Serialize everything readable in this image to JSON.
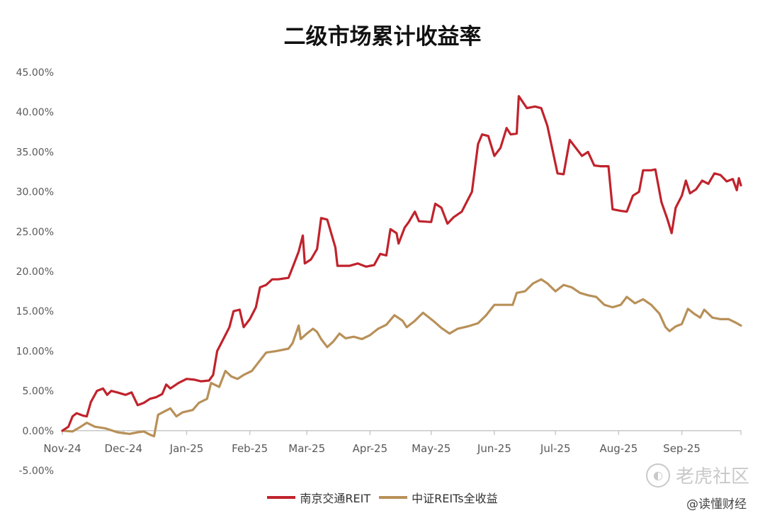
{
  "title": "二级市场累计收益率",
  "legend": {
    "series1": "南京交通REIT",
    "series2": "中证REITs全收益"
  },
  "watermark": {
    "brand": "老虎社区",
    "handle": "@读懂财经"
  },
  "colors": {
    "series1": "#c0232c",
    "series2": "#b89058",
    "axis": "#c8c8c8",
    "tick_text": "#595959"
  },
  "chart_data": {
    "type": "line",
    "x_tick_labels": [
      "Nov-24",
      "Dec-24",
      "Jan-25",
      "Feb-25",
      "Mar-25",
      "Apr-25",
      "May-25",
      "Jun-25",
      "Jul-25",
      "Aug-25",
      "Sep-25"
    ],
    "y_tick_labels": [
      "45.00%",
      "40.00%",
      "35.00%",
      "30.00%",
      "25.00%",
      "20.00%",
      "15.00%",
      "10.00%",
      "5.00%",
      "0.00%",
      "-5.00%"
    ],
    "ylim": [
      -5,
      45
    ],
    "y_unit": "%",
    "x_range": [
      "2024-11-01",
      "2025-09-30"
    ],
    "grid": false,
    "legend_position": "bottom",
    "series": [
      {
        "name": "南京交通REIT",
        "points": [
          [
            "2024-11-01",
            0.0
          ],
          [
            "2024-11-04",
            0.5
          ],
          [
            "2024-11-06",
            1.8
          ],
          [
            "2024-11-08",
            2.2
          ],
          [
            "2024-11-11",
            1.9
          ],
          [
            "2024-11-13",
            1.8
          ],
          [
            "2024-11-15",
            3.6
          ],
          [
            "2024-11-18",
            5.0
          ],
          [
            "2024-11-21",
            5.3
          ],
          [
            "2024-11-23",
            4.5
          ],
          [
            "2024-11-25",
            5.0
          ],
          [
            "2024-11-28",
            4.8
          ],
          [
            "2024-12-02",
            4.5
          ],
          [
            "2024-12-05",
            4.8
          ],
          [
            "2024-12-08",
            3.2
          ],
          [
            "2024-12-11",
            3.5
          ],
          [
            "2024-12-14",
            4.0
          ],
          [
            "2024-12-17",
            4.2
          ],
          [
            "2024-12-20",
            4.6
          ],
          [
            "2024-12-22",
            5.8
          ],
          [
            "2024-12-24",
            5.3
          ],
          [
            "2024-12-28",
            6.0
          ],
          [
            "2025-01-01",
            6.5
          ],
          [
            "2025-01-05",
            6.4
          ],
          [
            "2025-01-08",
            6.2
          ],
          [
            "2025-01-12",
            6.3
          ],
          [
            "2025-01-14",
            7.0
          ],
          [
            "2025-01-16",
            10.0
          ],
          [
            "2025-01-19",
            11.5
          ],
          [
            "2025-01-22",
            13.0
          ],
          [
            "2025-01-24",
            15.0
          ],
          [
            "2025-01-27",
            15.2
          ],
          [
            "2025-01-29",
            13.0
          ],
          [
            "2025-02-01",
            14.0
          ],
          [
            "2025-02-04",
            15.5
          ],
          [
            "2025-02-06",
            18.0
          ],
          [
            "2025-02-09",
            18.3
          ],
          [
            "2025-02-12",
            19.0
          ],
          [
            "2025-02-15",
            19.0
          ],
          [
            "2025-02-20",
            19.2
          ],
          [
            "2025-02-22",
            20.5
          ],
          [
            "2025-02-25",
            22.5
          ],
          [
            "2025-02-27",
            24.5
          ],
          [
            "2025-02-28",
            21.0
          ],
          [
            "2025-03-03",
            21.5
          ],
          [
            "2025-03-06",
            22.8
          ],
          [
            "2025-03-08",
            26.7
          ],
          [
            "2025-03-11",
            26.5
          ],
          [
            "2025-03-15",
            23.0
          ],
          [
            "2025-03-16",
            20.7
          ],
          [
            "2025-03-22",
            20.7
          ],
          [
            "2025-03-26",
            21.0
          ],
          [
            "2025-03-30",
            20.6
          ],
          [
            "2025-04-03",
            20.8
          ],
          [
            "2025-04-06",
            22.2
          ],
          [
            "2025-04-09",
            22.0
          ],
          [
            "2025-04-11",
            25.3
          ],
          [
            "2025-04-14",
            24.8
          ],
          [
            "2025-04-15",
            23.5
          ],
          [
            "2025-04-18",
            25.5
          ],
          [
            "2025-04-20",
            26.2
          ],
          [
            "2025-04-23",
            27.5
          ],
          [
            "2025-04-25",
            26.3
          ],
          [
            "2025-05-01",
            26.2
          ],
          [
            "2025-05-03",
            28.5
          ],
          [
            "2025-05-06",
            28.0
          ],
          [
            "2025-05-09",
            26.0
          ],
          [
            "2025-05-12",
            26.8
          ],
          [
            "2025-05-16",
            27.5
          ],
          [
            "2025-05-18",
            28.5
          ],
          [
            "2025-05-21",
            30.0
          ],
          [
            "2025-05-24",
            36.0
          ],
          [
            "2025-05-26",
            37.2
          ],
          [
            "2025-05-29",
            37.0
          ],
          [
            "2025-06-01",
            34.5
          ],
          [
            "2025-06-04",
            35.5
          ],
          [
            "2025-06-07",
            38.0
          ],
          [
            "2025-06-09",
            37.2
          ],
          [
            "2025-06-12",
            37.3
          ],
          [
            "2025-06-13",
            42.0
          ],
          [
            "2025-06-17",
            40.5
          ],
          [
            "2025-06-21",
            40.7
          ],
          [
            "2025-06-24",
            40.5
          ],
          [
            "2025-06-27",
            38.3
          ],
          [
            "2025-07-02",
            32.3
          ],
          [
            "2025-07-05",
            32.2
          ],
          [
            "2025-07-08",
            36.5
          ],
          [
            "2025-07-11",
            35.5
          ],
          [
            "2025-07-14",
            34.5
          ],
          [
            "2025-07-17",
            35.0
          ],
          [
            "2025-07-20",
            33.3
          ],
          [
            "2025-07-23",
            33.2
          ],
          [
            "2025-07-27",
            33.2
          ],
          [
            "2025-07-29",
            27.8
          ],
          [
            "2025-08-02",
            27.6
          ],
          [
            "2025-08-05",
            27.5
          ],
          [
            "2025-08-08",
            29.5
          ],
          [
            "2025-08-11",
            30.0
          ],
          [
            "2025-08-13",
            32.7
          ],
          [
            "2025-08-17",
            32.7
          ],
          [
            "2025-08-19",
            32.8
          ],
          [
            "2025-08-22",
            28.7
          ],
          [
            "2025-08-25",
            26.5
          ],
          [
            "2025-08-27",
            24.8
          ],
          [
            "2025-08-29",
            28.0
          ],
          [
            "2025-09-01",
            29.5
          ],
          [
            "2025-09-03",
            31.4
          ],
          [
            "2025-09-05",
            29.8
          ],
          [
            "2025-09-08",
            30.3
          ],
          [
            "2025-09-11",
            31.4
          ],
          [
            "2025-09-14",
            31.0
          ],
          [
            "2025-09-17",
            32.3
          ],
          [
            "2025-09-20",
            32.1
          ],
          [
            "2025-09-23",
            31.3
          ],
          [
            "2025-09-26",
            31.6
          ],
          [
            "2025-09-28",
            30.2
          ],
          [
            "2025-09-29",
            31.7
          ],
          [
            "2025-09-30",
            30.8
          ]
        ]
      },
      {
        "name": "中证REITs全收益",
        "points": [
          [
            "2024-11-01",
            0.0
          ],
          [
            "2024-11-06",
            -0.1
          ],
          [
            "2024-11-10",
            0.5
          ],
          [
            "2024-11-13",
            1.0
          ],
          [
            "2024-11-17",
            0.5
          ],
          [
            "2024-11-22",
            0.3
          ],
          [
            "2024-11-28",
            -0.2
          ],
          [
            "2024-12-04",
            -0.4
          ],
          [
            "2024-12-08",
            -0.2
          ],
          [
            "2024-12-11",
            -0.1
          ],
          [
            "2024-12-14",
            -0.5
          ],
          [
            "2024-12-16",
            -0.7
          ],
          [
            "2024-12-18",
            2.0
          ],
          [
            "2024-12-21",
            2.4
          ],
          [
            "2024-12-24",
            2.8
          ],
          [
            "2024-12-27",
            1.8
          ],
          [
            "2024-12-30",
            2.3
          ],
          [
            "2025-01-04",
            2.6
          ],
          [
            "2025-01-07",
            3.5
          ],
          [
            "2025-01-11",
            4.0
          ],
          [
            "2025-01-13",
            6.0
          ],
          [
            "2025-01-17",
            5.5
          ],
          [
            "2025-01-20",
            7.5
          ],
          [
            "2025-01-23",
            6.8
          ],
          [
            "2025-01-26",
            6.5
          ],
          [
            "2025-01-29",
            7.0
          ],
          [
            "2025-02-02",
            7.5
          ],
          [
            "2025-02-05",
            8.5
          ],
          [
            "2025-02-09",
            9.8
          ],
          [
            "2025-02-14",
            10.0
          ],
          [
            "2025-02-20",
            10.3
          ],
          [
            "2025-02-22",
            11.0
          ],
          [
            "2025-02-25",
            13.2
          ],
          [
            "2025-02-26",
            11.5
          ],
          [
            "2025-03-01",
            12.2
          ],
          [
            "2025-03-04",
            12.8
          ],
          [
            "2025-03-06",
            12.4
          ],
          [
            "2025-03-08",
            11.5
          ],
          [
            "2025-03-11",
            10.5
          ],
          [
            "2025-03-14",
            11.2
          ],
          [
            "2025-03-17",
            12.2
          ],
          [
            "2025-03-20",
            11.6
          ],
          [
            "2025-03-24",
            11.8
          ],
          [
            "2025-03-28",
            11.5
          ],
          [
            "2025-04-01",
            12.0
          ],
          [
            "2025-04-05",
            12.8
          ],
          [
            "2025-04-09",
            13.3
          ],
          [
            "2025-04-13",
            14.5
          ],
          [
            "2025-04-17",
            13.8
          ],
          [
            "2025-04-19",
            13.0
          ],
          [
            "2025-04-23",
            13.8
          ],
          [
            "2025-04-27",
            14.8
          ],
          [
            "2025-05-02",
            13.8
          ],
          [
            "2025-05-06",
            12.9
          ],
          [
            "2025-05-10",
            12.2
          ],
          [
            "2025-05-14",
            12.8
          ],
          [
            "2025-05-19",
            13.1
          ],
          [
            "2025-05-24",
            13.5
          ],
          [
            "2025-05-28",
            14.5
          ],
          [
            "2025-06-01",
            15.8
          ],
          [
            "2025-06-06",
            15.8
          ],
          [
            "2025-06-10",
            15.8
          ],
          [
            "2025-06-12",
            17.3
          ],
          [
            "2025-06-16",
            17.5
          ],
          [
            "2025-06-20",
            18.5
          ],
          [
            "2025-06-24",
            19.0
          ],
          [
            "2025-06-27",
            18.5
          ],
          [
            "2025-07-01",
            17.5
          ],
          [
            "2025-07-05",
            18.3
          ],
          [
            "2025-07-09",
            18.0
          ],
          [
            "2025-07-13",
            17.3
          ],
          [
            "2025-07-17",
            17.0
          ],
          [
            "2025-07-21",
            16.8
          ],
          [
            "2025-07-25",
            15.8
          ],
          [
            "2025-07-29",
            15.5
          ],
          [
            "2025-08-02",
            15.8
          ],
          [
            "2025-08-05",
            16.8
          ],
          [
            "2025-08-09",
            16.0
          ],
          [
            "2025-08-13",
            16.5
          ],
          [
            "2025-08-17",
            15.8
          ],
          [
            "2025-08-21",
            14.7
          ],
          [
            "2025-08-24",
            13.0
          ],
          [
            "2025-08-26",
            12.5
          ],
          [
            "2025-08-29",
            13.1
          ],
          [
            "2025-09-01",
            13.4
          ],
          [
            "2025-09-04",
            15.3
          ],
          [
            "2025-09-07",
            14.7
          ],
          [
            "2025-09-10",
            14.2
          ],
          [
            "2025-09-12",
            15.2
          ],
          [
            "2025-09-16",
            14.2
          ],
          [
            "2025-09-20",
            14.0
          ],
          [
            "2025-09-24",
            14.0
          ],
          [
            "2025-09-28",
            13.5
          ],
          [
            "2025-09-30",
            13.2
          ]
        ]
      }
    ]
  }
}
